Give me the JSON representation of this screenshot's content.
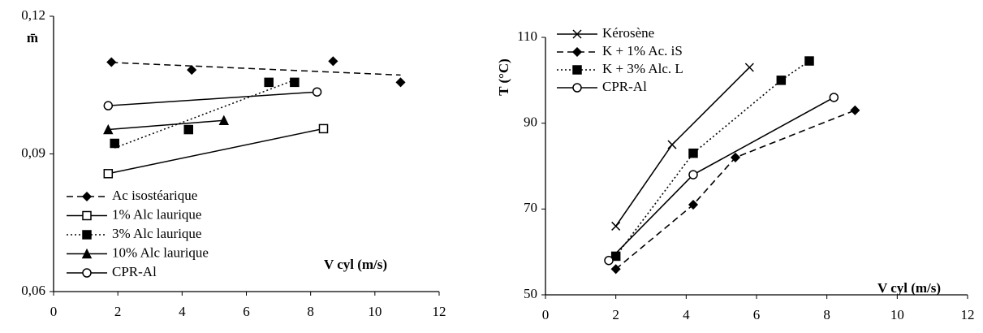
{
  "chart_data": [
    {
      "type": "scatter",
      "line": "linear-fit",
      "legend": "lower-left",
      "ylabel": "m̄",
      "xlabel": "V cyl (m/s)",
      "xlim": [
        0,
        12
      ],
      "xticks": [
        0,
        2,
        4,
        6,
        8,
        10,
        12
      ],
      "ylim": [
        0.06,
        0.12
      ],
      "yticks": [
        {
          "value": 0.06,
          "label": "0,06"
        },
        {
          "value": 0.09,
          "label": "0,09"
        },
        {
          "value": 0.12,
          "label": "0,12"
        }
      ],
      "series": [
        {
          "name": "Ac isostéarique",
          "color": "#000000",
          "dash": "dashed",
          "marker": "diamond",
          "x": [
            1.8,
            4.3,
            8.7,
            10.8
          ],
          "values": [
            0.11,
            0.1083,
            0.1102,
            0.1056
          ]
        },
        {
          "name": "1%  Alc laurique",
          "color": "#000000",
          "dash": "solid",
          "marker": "square-open",
          "x": [
            1.7,
            8.4
          ],
          "values": [
            0.0857,
            0.0955
          ]
        },
        {
          "name": "3%  Alc laurique",
          "color": "#000000",
          "dash": "dotted",
          "marker": "square",
          "x": [
            1.9,
            4.2,
            6.7,
            7.5
          ],
          "values": [
            0.0923,
            0.0953,
            0.1056,
            0.1056
          ]
        },
        {
          "name": "10% Alc laurique",
          "color": "#000000",
          "dash": "solid",
          "marker": "triangle",
          "x": [
            1.7,
            5.3
          ],
          "values": [
            0.0953,
            0.0973
          ]
        },
        {
          "name": "CPR-Al",
          "color": "#000000",
          "dash": "solid",
          "marker": "circle-open",
          "x": [
            1.7,
            8.2
          ],
          "values": [
            0.1005,
            0.1035
          ]
        }
      ]
    },
    {
      "type": "line",
      "line": "connect",
      "legend": "upper-left",
      "ylabel": "T (°C)",
      "xlabel": "V cyl (m/s)",
      "xlim": [
        0,
        12
      ],
      "xticks": [
        0,
        2,
        4,
        6,
        8,
        10,
        12
      ],
      "ylim": [
        50,
        110
      ],
      "yticks": [
        50,
        70,
        90,
        110
      ],
      "series": [
        {
          "name": "Kérosène",
          "color": "#000000",
          "dash": "solid",
          "marker": "cross",
          "x": [
            2,
            3.6,
            5.8
          ],
          "values": [
            66,
            85,
            103
          ]
        },
        {
          "name": "K + 1% Ac. iS",
          "color": "#000000",
          "dash": "dashed",
          "marker": "diamond",
          "x": [
            2,
            4.2,
            5.4,
            8.8
          ],
          "values": [
            56,
            71,
            82,
            93
          ]
        },
        {
          "name": "K + 3% Alc. L",
          "color": "#000000",
          "dash": "dotted",
          "marker": "square",
          "x": [
            2,
            4.2,
            6.7,
            7.5
          ],
          "values": [
            59,
            83,
            100,
            104.5
          ]
        },
        {
          "name": "CPR-Al",
          "color": "#000000",
          "dash": "solid",
          "marker": "circle-open",
          "x": [
            1.8,
            4.2,
            8.2
          ],
          "values": [
            58,
            78,
            96
          ]
        }
      ]
    }
  ]
}
